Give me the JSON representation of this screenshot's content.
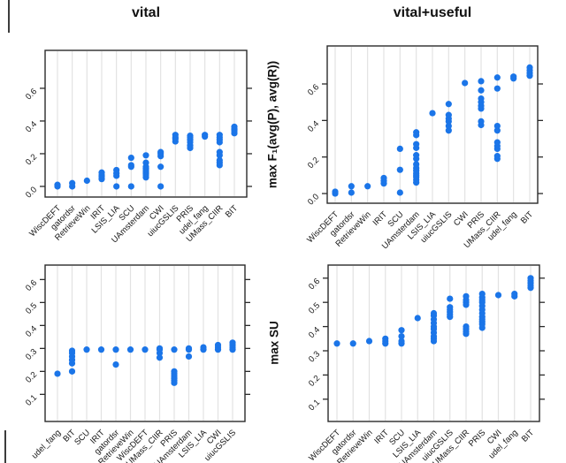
{
  "style": {
    "dot_color": "#1b75e8",
    "grid_color": "#e2e2e2",
    "axis_color": "#2a2a2a",
    "text_color": "#161616"
  },
  "chart_data": [
    {
      "id": "vital-f1",
      "type": "scatter",
      "title": "vital",
      "xlabel": "",
      "ylabel": "",
      "legend": "none",
      "grid": "vertical-category-lines",
      "yticks": [
        "0.0",
        "0.2",
        "0.4",
        "0.6"
      ],
      "ylim": [
        -0.065,
        0.832
      ],
      "columns": [
        {
          "team": "WiscDEFT",
          "values": [
            0.0,
            0.01
          ]
        },
        {
          "team": "gatordsr",
          "values": [
            0.0,
            0.02
          ]
        },
        {
          "team": "RetrieveWin",
          "values": [
            0.035
          ]
        },
        {
          "team": "IRIT",
          "values": [
            0.045,
            0.06,
            0.07,
            0.085
          ]
        },
        {
          "team": "LSIS_LIA",
          "values": [
            0.0,
            0.065,
            0.08,
            0.1
          ]
        },
        {
          "team": "SCU",
          "values": [
            0.0,
            0.12,
            0.13,
            0.175
          ]
        },
        {
          "team": "UAmsterdam",
          "values": [
            0.055,
            0.07,
            0.08,
            0.09,
            0.1,
            0.11,
            0.12,
            0.145,
            0.19
          ]
        },
        {
          "team": "CWI",
          "values": [
            0.0,
            0.12,
            0.185,
            0.2,
            0.21
          ]
        },
        {
          "team": "uiucGSLIS",
          "values": [
            0.275,
            0.29,
            0.3,
            0.315
          ]
        },
        {
          "team": "PRIS",
          "values": [
            0.235,
            0.25,
            0.27,
            0.285,
            0.3,
            0.31
          ]
        },
        {
          "team": "udel_fang",
          "values": [
            0.305,
            0.315
          ]
        },
        {
          "team": "UMass_CIIR",
          "values": [
            0.13,
            0.145,
            0.16,
            0.19,
            0.21,
            0.27,
            0.285,
            0.3,
            0.315
          ]
        },
        {
          "team": "BIT",
          "values": [
            0.325,
            0.34,
            0.35,
            0.365
          ]
        }
      ]
    },
    {
      "id": "vital-useful-f1",
      "type": "scatter",
      "title": "vital+useful",
      "xlabel": "",
      "ylabel": "max F₁(avg(P), avg(R))",
      "legend": "none",
      "grid": "vertical-category-lines",
      "yticks": [
        "0.0",
        "0.2",
        "0.4",
        "0.6"
      ],
      "ylim": [
        -0.053,
        0.808
      ],
      "columns": [
        {
          "team": "WiscDEFT",
          "values": [
            0.0,
            0.01
          ]
        },
        {
          "team": "gatordsr",
          "values": [
            0.005,
            0.04
          ]
        },
        {
          "team": "RetrieveWin",
          "values": [
            0.04
          ]
        },
        {
          "team": "IRIT",
          "values": [
            0.055,
            0.07,
            0.085
          ]
        },
        {
          "team": "SCU",
          "values": [
            0.005,
            0.13,
            0.245
          ]
        },
        {
          "team": "UAmsterdam",
          "values": [
            0.06,
            0.075,
            0.09,
            0.1,
            0.11,
            0.125,
            0.14,
            0.16,
            0.19,
            0.21,
            0.25,
            0.27,
            0.32,
            0.335
          ]
        },
        {
          "team": "LSIS_LIA",
          "values": [
            0.44
          ]
        },
        {
          "team": "uiucGSLIS",
          "values": [
            0.345,
            0.37,
            0.395,
            0.41,
            0.43,
            0.49
          ]
        },
        {
          "team": "CWI",
          "values": [
            0.605
          ]
        },
        {
          "team": "PRIS",
          "values": [
            0.375,
            0.395,
            0.465,
            0.48,
            0.5,
            0.52,
            0.565,
            0.615
          ]
        },
        {
          "team": "UMass_CIIR",
          "values": [
            0.19,
            0.205,
            0.245,
            0.26,
            0.28,
            0.345,
            0.37,
            0.575,
            0.635
          ]
        },
        {
          "team": "udel_fang",
          "values": [
            0.63,
            0.64
          ]
        },
        {
          "team": "BIT",
          "values": [
            0.645,
            0.66,
            0.675,
            0.69
          ]
        }
      ]
    },
    {
      "id": "vital-su",
      "type": "scatter",
      "title": "",
      "xlabel": "",
      "ylabel": "",
      "legend": "none",
      "grid": "vertical-category-lines",
      "yticks": [
        "0.1",
        "0.2",
        "0.3",
        "0.4",
        "0.5",
        "0.6"
      ],
      "ylim": [
        -0.018,
        0.663
      ],
      "columns": [
        {
          "team": "udel_fang",
          "values": [
            0.19
          ]
        },
        {
          "team": "BIT",
          "values": [
            0.2,
            0.235,
            0.25,
            0.265,
            0.28,
            0.29
          ]
        },
        {
          "team": "SCU",
          "values": [
            0.295
          ]
        },
        {
          "team": "IRIT",
          "values": [
            0.295
          ]
        },
        {
          "team": "gatordsr",
          "values": [
            0.23,
            0.295
          ]
        },
        {
          "team": "RetrieveWin",
          "values": [
            0.295
          ]
        },
        {
          "team": "WiscDEFT",
          "values": [
            0.295
          ]
        },
        {
          "team": "UMass_CIIR",
          "values": [
            0.26,
            0.28,
            0.295,
            0.3
          ]
        },
        {
          "team": "PRIS",
          "values": [
            0.15,
            0.16,
            0.17,
            0.18,
            0.19,
            0.2,
            0.295
          ]
        },
        {
          "team": "UAmsterdam",
          "values": [
            0.265,
            0.295,
            0.3
          ]
        },
        {
          "team": "LSIS_LIA",
          "values": [
            0.295,
            0.305
          ]
        },
        {
          "team": "CWI",
          "values": [
            0.295,
            0.305,
            0.315
          ]
        },
        {
          "team": "uiucGSLIS",
          "values": [
            0.295,
            0.305,
            0.315,
            0.325
          ]
        }
      ]
    },
    {
      "id": "vital-useful-su",
      "type": "scatter",
      "title": "",
      "xlabel": "",
      "ylabel": "max SU",
      "legend": "none",
      "grid": "vertical-category-lines",
      "yticks": [
        "0.1",
        "0.2",
        "0.3",
        "0.4",
        "0.5",
        "0.6"
      ],
      "ylim": [
        0.008,
        0.654
      ],
      "columns": [
        {
          "team": "WiscDEFT",
          "values": [
            0.33
          ]
        },
        {
          "team": "gatordsr",
          "values": [
            0.33
          ]
        },
        {
          "team": "RetrieveWin",
          "values": [
            0.34
          ]
        },
        {
          "team": "IRIT",
          "values": [
            0.33,
            0.34,
            0.35
          ]
        },
        {
          "team": "SCU",
          "values": [
            0.33,
            0.34,
            0.36,
            0.385
          ]
        },
        {
          "team": "LSIS_LIA",
          "values": [
            0.435
          ]
        },
        {
          "team": "UAmsterdam",
          "values": [
            0.34,
            0.35,
            0.36,
            0.375,
            0.39,
            0.4,
            0.415,
            0.43,
            0.445,
            0.455
          ]
        },
        {
          "team": "uiucGSLIS",
          "values": [
            0.44,
            0.45,
            0.46,
            0.47,
            0.48,
            0.515
          ]
        },
        {
          "team": "UMass_CIIR",
          "values": [
            0.37,
            0.38,
            0.39,
            0.4,
            0.49,
            0.5,
            0.51,
            0.525
          ]
        },
        {
          "team": "PRIS",
          "values": [
            0.395,
            0.41,
            0.42,
            0.43,
            0.44,
            0.455,
            0.47,
            0.485,
            0.5,
            0.51,
            0.52,
            0.535
          ]
        },
        {
          "team": "CWI",
          "values": [
            0.53
          ]
        },
        {
          "team": "udel_fang",
          "values": [
            0.525,
            0.535
          ]
        },
        {
          "team": "BIT",
          "values": [
            0.56,
            0.57,
            0.58,
            0.59,
            0.6
          ]
        }
      ]
    }
  ]
}
